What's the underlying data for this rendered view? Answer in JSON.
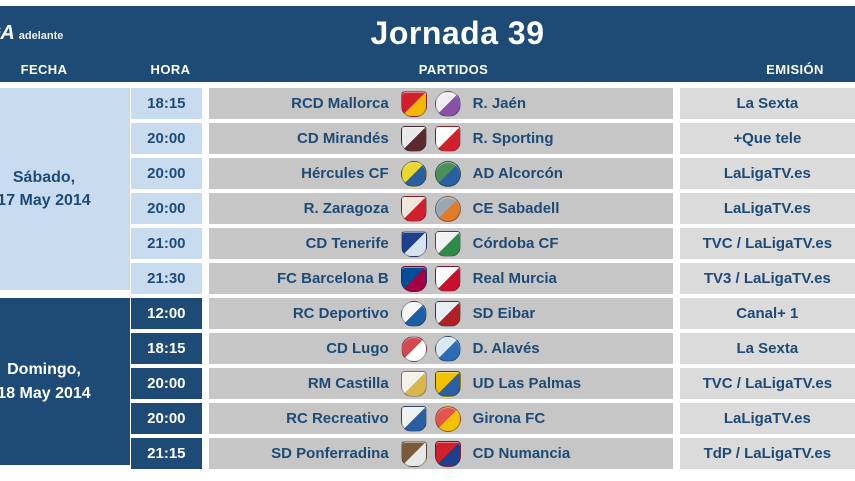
{
  "brand": {
    "logo_main": "LIGA",
    "logo_sub": "adelante"
  },
  "title": "Jornada 39",
  "columns": {
    "fecha": "FECHA",
    "hora": "HORA",
    "partidos": "PARTIDOS",
    "emision": "EMISIÓN"
  },
  "colors": {
    "header_navy": "#1d4b76",
    "saturday_blue": "#c9dcef",
    "partidos_gray": "#c6c6c6",
    "emision_gray": "#dbdbdb",
    "text_blue": "#1d4b76",
    "text_white": "#ffffff"
  },
  "days": [
    {
      "date_line1": "Sábado,",
      "date_line2": "17 May 2014",
      "matches": [
        {
          "time": "18:15",
          "home": "RCD Mallorca",
          "away": "R. Jaén",
          "tv": "La Sexta",
          "home_crest": {
            "icon": "rcd-mallorca-crest",
            "shape": "shield",
            "c1": "#d0202c",
            "c2": "#f2b705"
          },
          "away_crest": {
            "icon": "real-jaen-crest",
            "shape": "circle",
            "c1": "#f2ecf5",
            "c2": "#8a4fa8"
          }
        },
        {
          "time": "20:00",
          "home": "CD Mirandés",
          "away": "R. Sporting",
          "tv": "+Que tele",
          "home_crest": {
            "icon": "cd-mirandes-crest",
            "shape": "shield",
            "c1": "#e9e9e9",
            "c2": "#5a2a2e"
          },
          "away_crest": {
            "icon": "sporting-gijon-crest",
            "shape": "shield",
            "c1": "#ffffff",
            "c2": "#d0202c"
          }
        },
        {
          "time": "20:00",
          "home": "Hércules CF",
          "away": "AD Alcorcón",
          "tv": "LaLigaTV.es",
          "home_crest": {
            "icon": "hercules-cf-crest",
            "shape": "circle",
            "c1": "#e7d832",
            "c2": "#2b5fa3"
          },
          "away_crest": {
            "icon": "ad-alcorcon-crest",
            "shape": "circle",
            "c1": "#4a8f5a",
            "c2": "#2b5fa3"
          }
        },
        {
          "time": "20:00",
          "home": "R. Zaragoza",
          "away": "CE Sabadell",
          "tv": "LaLigaTV.es",
          "home_crest": {
            "icon": "real-zaragoza-crest",
            "shape": "shield",
            "c1": "#f0e6da",
            "c2": "#d0202c"
          },
          "away_crest": {
            "icon": "ce-sabadell-crest",
            "shape": "circle",
            "c1": "#9aa7b5",
            "c2": "#e07b2a"
          }
        },
        {
          "time": "21:00",
          "home": "CD Tenerife",
          "away": "Córdoba CF",
          "tv": "TVC / LaLigaTV.es",
          "home_crest": {
            "icon": "cd-tenerife-crest",
            "shape": "shield",
            "c1": "#1d3f8c",
            "c2": "#d9e2f0"
          },
          "away_crest": {
            "icon": "cordoba-cf-crest",
            "shape": "shield",
            "c1": "#f2f2f2",
            "c2": "#2e8b46"
          }
        },
        {
          "time": "21:30",
          "home": "FC Barcelona B",
          "away": "Real Murcia",
          "tv": "TV3 / LaLigaTV.es",
          "home_crest": {
            "icon": "fc-barcelona-b-crest",
            "shape": "shield",
            "c1": "#004d98",
            "c2": "#a50044"
          },
          "away_crest": {
            "icon": "real-murcia-crest",
            "shape": "shield",
            "c1": "#ffffff",
            "c2": "#c8102e"
          }
        }
      ]
    },
    {
      "date_line1": "Domingo,",
      "date_line2": "18 May 2014",
      "matches": [
        {
          "time": "12:00",
          "home": "RC Deportivo",
          "away": "SD Eibar",
          "tv": "Canal+ 1",
          "home_crest": {
            "icon": "rc-deportivo-crest",
            "shape": "circle",
            "c1": "#f5f5f5",
            "c2": "#1b5fa6"
          },
          "away_crest": {
            "icon": "sd-eibar-crest",
            "shape": "shield",
            "c1": "#e8eef5",
            "c2": "#b02025"
          }
        },
        {
          "time": "18:15",
          "home": "CD Lugo",
          "away": "D. Alavés",
          "tv": "La Sexta",
          "home_crest": {
            "icon": "cd-lugo-crest",
            "shape": "circle",
            "c1": "#d4484e",
            "c2": "#ffffff"
          },
          "away_crest": {
            "icon": "deportivo-alaves-crest",
            "shape": "circle",
            "c1": "#dbe7f2",
            "c2": "#2b6cb5"
          }
        },
        {
          "time": "20:00",
          "home": "RM Castilla",
          "away": "UD Las Palmas",
          "tv": "TVC / LaLigaTV.es",
          "home_crest": {
            "icon": "rm-castilla-crest",
            "shape": "shield",
            "c1": "#f5f2e8",
            "c2": "#d9b54a"
          },
          "away_crest": {
            "icon": "ud-las-palmas-crest",
            "shape": "shield",
            "c1": "#f2c200",
            "c2": "#2b5fa3"
          }
        },
        {
          "time": "20:00",
          "home": "RC Recreativo",
          "away": "Girona FC",
          "tv": "LaLigaTV.es",
          "home_crest": {
            "icon": "rc-recreativo-crest",
            "shape": "shield",
            "c1": "#f0f0f0",
            "c2": "#2b5fa3"
          },
          "away_crest": {
            "icon": "girona-fc-crest",
            "shape": "circle",
            "c1": "#e5554f",
            "c2": "#f2c200"
          }
        },
        {
          "time": "21:15",
          "home": "SD Ponferradina",
          "away": "CD Numancia",
          "tv": "TdP / LaLigaTV.es",
          "home_crest": {
            "icon": "sd-ponferradina-crest",
            "shape": "shield",
            "c1": "#7a5a3a",
            "c2": "#e8e8e8"
          },
          "away_crest": {
            "icon": "cd-numancia-crest",
            "shape": "shield",
            "c1": "#d0202c",
            "c2": "#1d3f8c"
          }
        }
      ]
    }
  ]
}
